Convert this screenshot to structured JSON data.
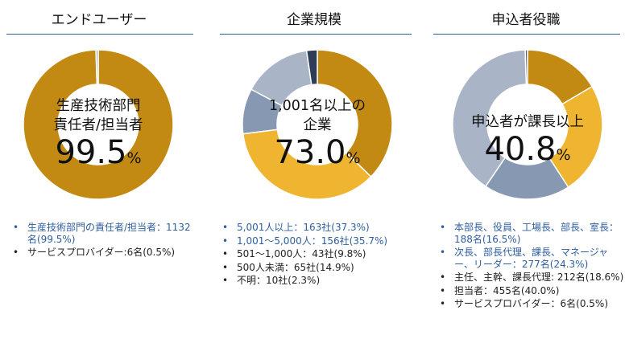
{
  "chart_data": [
    {
      "type": "pie",
      "title": "エンドユーザー",
      "center_label_lines": [
        "生産技術部門",
        "責任者/担当者"
      ],
      "center_value": "99.5",
      "center_unit": "%",
      "slices": [
        {
          "name": "生産技術部門の責任者/担当者",
          "value": 99.5,
          "color": "#C28A12"
        },
        {
          "name": "サービスプロバイダー",
          "value": 0.5,
          "color": "#A9B5C7"
        }
      ],
      "legend": [
        {
          "text": "生産技術部門の責任者/担当者：1132名(99.5%)",
          "highlight": true
        },
        {
          "text": "サービスプロバイダー:6名(0.5%)",
          "highlight": false
        }
      ]
    },
    {
      "type": "pie",
      "title": "企業規模",
      "center_label_lines": [
        "1,001名以上の",
        "企業"
      ],
      "center_value": "73.0",
      "center_unit": "%",
      "slices": [
        {
          "name": "5,001人以上",
          "value": 37.3,
          "color": "#C28A12"
        },
        {
          "name": "1,001～5,000人",
          "value": 35.7,
          "color": "#F0B530"
        },
        {
          "name": "501～1,000人",
          "value": 9.8,
          "color": "#8799B2"
        },
        {
          "name": "500人未満",
          "value": 14.9,
          "color": "#A9B5C7"
        },
        {
          "name": "不明",
          "value": 2.3,
          "color": "#2F3D57"
        }
      ],
      "legend": [
        {
          "text": "5,001人以上：163社(37.3%)",
          "highlight": true
        },
        {
          "text": "1,001～5,000人：156社(35.7%)",
          "highlight": true
        },
        {
          "text": "501～1,000人：43社(9.8%)",
          "highlight": false
        },
        {
          "text": "500人未満：65社(14.9%)",
          "highlight": false
        },
        {
          "text": "不明：10社(2.3%)",
          "highlight": false
        }
      ]
    },
    {
      "type": "pie",
      "title": "申込者役職",
      "center_label_lines": [
        "申込者が課長以上"
      ],
      "center_value": "40.8",
      "center_unit": "%",
      "slices": [
        {
          "name": "本部長、役員、工場長、部長、室長",
          "value": 16.5,
          "color": "#C28A12"
        },
        {
          "name": "次長、部長代理、課長、マネージャー、リーダー",
          "value": 24.3,
          "color": "#F0B530"
        },
        {
          "name": "主任、主幹、課長代理",
          "value": 18.6,
          "color": "#8799B2"
        },
        {
          "name": "担当者",
          "value": 40.0,
          "color": "#A9B5C7"
        },
        {
          "name": "サービスプロバイダー",
          "value": 0.5,
          "color": "#5C6470"
        }
      ],
      "legend": [
        {
          "text": "本部長、役員、工場長、部長、室長：188名(16.5%)",
          "highlight": true
        },
        {
          "text": "次長、部長代理、課長、マネージャー、リーダー：277名(24.3%)",
          "highlight": true
        },
        {
          "text": "主任、主幹、課長代理: 212名(18.6%)",
          "highlight": false
        },
        {
          "text": "担当者：455名(40.0%)",
          "highlight": false
        },
        {
          "text": "サービスプロバイダー：6名(0.5%)",
          "highlight": false
        }
      ]
    }
  ]
}
